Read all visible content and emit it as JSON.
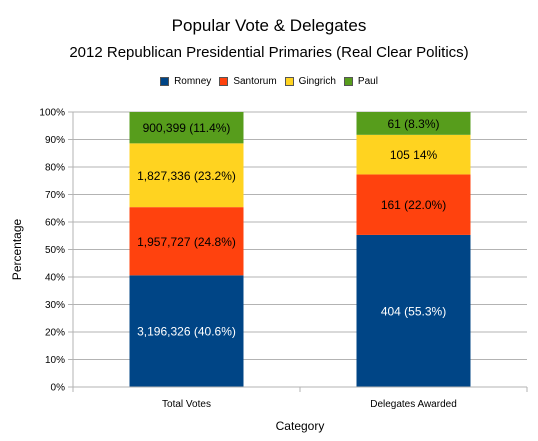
{
  "chart_data": {
    "type": "bar",
    "stacked": true,
    "normalized": true,
    "title": "Popular Vote & Delegates",
    "subtitle": "2012 Republican Presidential Primaries (Real Clear Politics)",
    "xlabel": "Category",
    "ylabel": "Percentage",
    "ylim": [
      0,
      100
    ],
    "y_ticks": [
      "0%",
      "10%",
      "20%",
      "30%",
      "40%",
      "50%",
      "60%",
      "70%",
      "80%",
      "90%",
      "100%"
    ],
    "grid": true,
    "legend_position": "top",
    "categories": [
      "Total Votes",
      "Delegates Awarded"
    ],
    "series": [
      {
        "name": "Romney",
        "color": "#004586",
        "values": [
          40.6,
          55.3
        ],
        "data_labels": [
          "3,196,326 (40.6%)",
          "404 (55.3%)"
        ]
      },
      {
        "name": "Santorum",
        "color": "#ff420e",
        "values": [
          24.8,
          22.0
        ],
        "data_labels": [
          "1,957,727 (24.8%)",
          "161 (22.0%)"
        ]
      },
      {
        "name": "Gingrich",
        "color": "#ffd320",
        "values": [
          23.2,
          14.4
        ],
        "data_labels": [
          "1,827,336 (23.2%)",
          "105 14%"
        ]
      },
      {
        "name": "Paul",
        "color": "#579d1c",
        "values": [
          11.4,
          8.3
        ],
        "data_labels": [
          "900,399 (11.4%)",
          "61 (8.3%)"
        ]
      }
    ]
  }
}
